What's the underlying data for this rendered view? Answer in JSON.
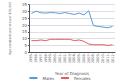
{
  "chart_data": {
    "type": "line",
    "xlabel": "Year of Diagnosis",
    "ylabel": "Age-standardised rate per 100,000",
    "x": [
      1995,
      1996,
      1997,
      1998,
      1999,
      2000,
      2001,
      2002,
      2003,
      2004,
      2005,
      2006,
      2007,
      2008,
      2009,
      2010,
      2011,
      2012
    ],
    "series": [
      {
        "name": "Males",
        "color": "#5b9bd5",
        "values": [
          28.5,
          30.2,
          29.0,
          28.8,
          29.2,
          29.0,
          28.5,
          29.2,
          28.5,
          27.8,
          28.8,
          27.5,
          30.5,
          19.5,
          19.0,
          18.5,
          18.0,
          19.0
        ]
      },
      {
        "name": "Females",
        "color": "#e06060",
        "values": [
          8.5,
          8.5,
          9.0,
          8.5,
          9.5,
          9.5,
          9.5,
          9.5,
          9.5,
          8.5,
          9.0,
          8.0,
          6.0,
          5.5,
          5.5,
          5.5,
          5.0,
          5.5
        ]
      }
    ],
    "xlim": [
      1994.5,
      2012.5
    ],
    "xticks": [
      1995,
      1996,
      1997,
      1998,
      1999,
      2000,
      2001,
      2002,
      2003,
      2004,
      2005,
      2006,
      2007,
      2008,
      2009,
      2010,
      2011,
      2012
    ],
    "ylim": [
      0,
      35
    ],
    "yticks": [
      0,
      5,
      10,
      15,
      20,
      25,
      30,
      35
    ],
    "grid": true,
    "legend": "bottom"
  }
}
